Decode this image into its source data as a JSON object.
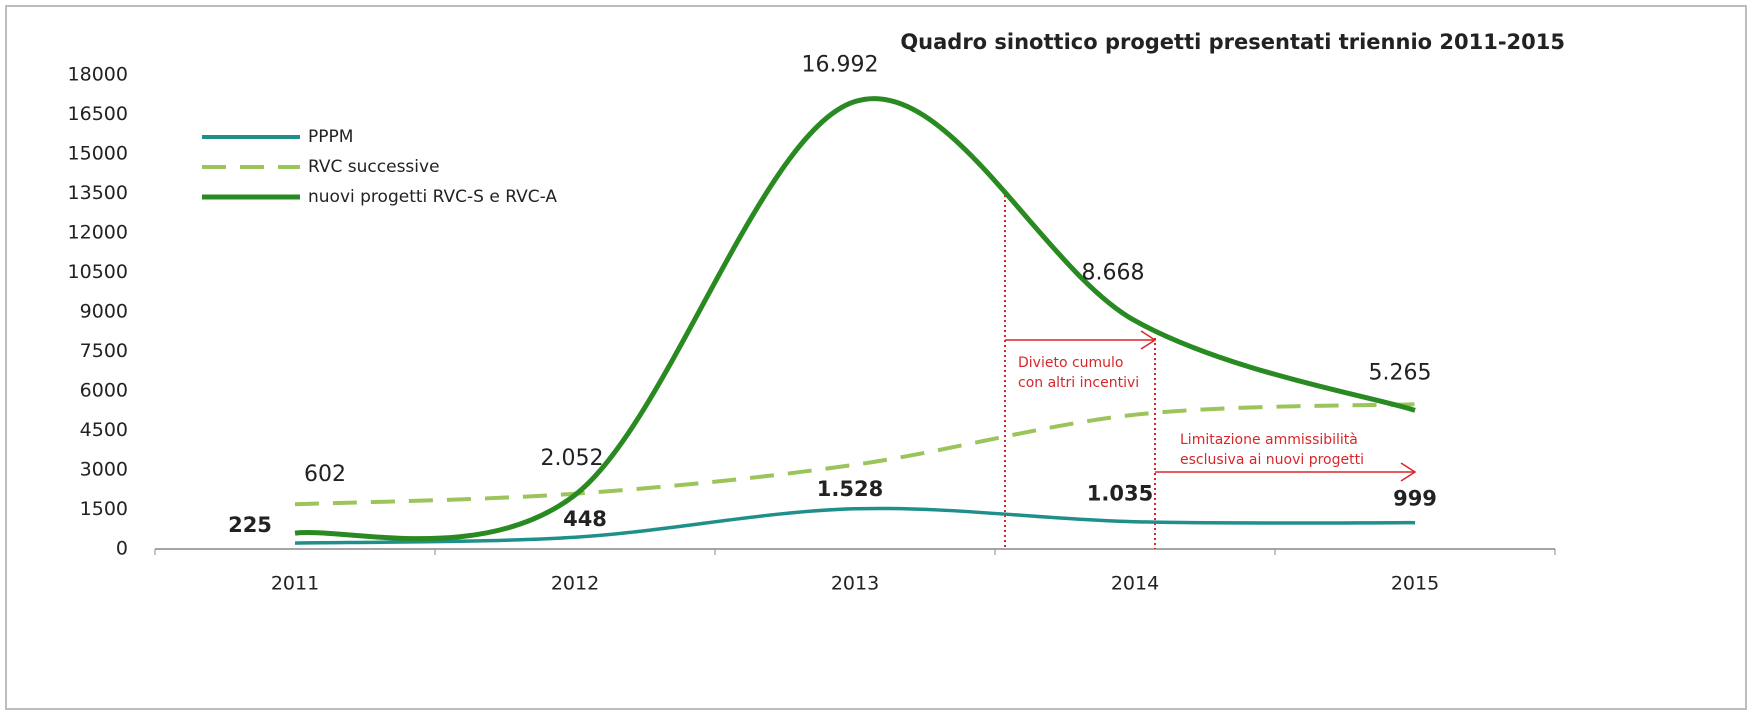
{
  "chart_data": {
    "type": "line",
    "title": "Quadro sinottico progetti presentati triennio 2011-2015",
    "categories": [
      "2011",
      "2012",
      "2013",
      "2014",
      "2015"
    ],
    "series": [
      {
        "name": "PPPM",
        "color": "#1f8f8c",
        "style": "solid",
        "values": [
          225,
          448,
          1528,
          1035,
          999
        ],
        "value_labels": [
          "225",
          "448",
          "1.528",
          "1.035",
          "999"
        ]
      },
      {
        "name": "RVC successive",
        "color": "#9bc45a",
        "style": "dashed",
        "values": [
          1700,
          2100,
          3200,
          5100,
          5500
        ]
      },
      {
        "name": "nuovi progetti RVC-S e RVC-A",
        "color": "#2a8a22",
        "style": "solid",
        "values": [
          602,
          2052,
          16992,
          8668,
          5265
        ],
        "value_labels": [
          "602",
          "2.052",
          "16.992",
          "8.668",
          "5.265"
        ]
      }
    ],
    "ylim": [
      0,
      18000
    ],
    "yticks": [
      0,
      1500,
      3000,
      4500,
      6000,
      7500,
      9000,
      10500,
      12000,
      13500,
      15000,
      16500,
      18000
    ],
    "grid": false,
    "legend": "top-left",
    "annotations": [
      [
        "Divieto cumulo",
        "con altri incentivi"
      ],
      [
        "Limitazione ammissibilità",
        "esclusiva ai nuovi progetti"
      ]
    ]
  }
}
